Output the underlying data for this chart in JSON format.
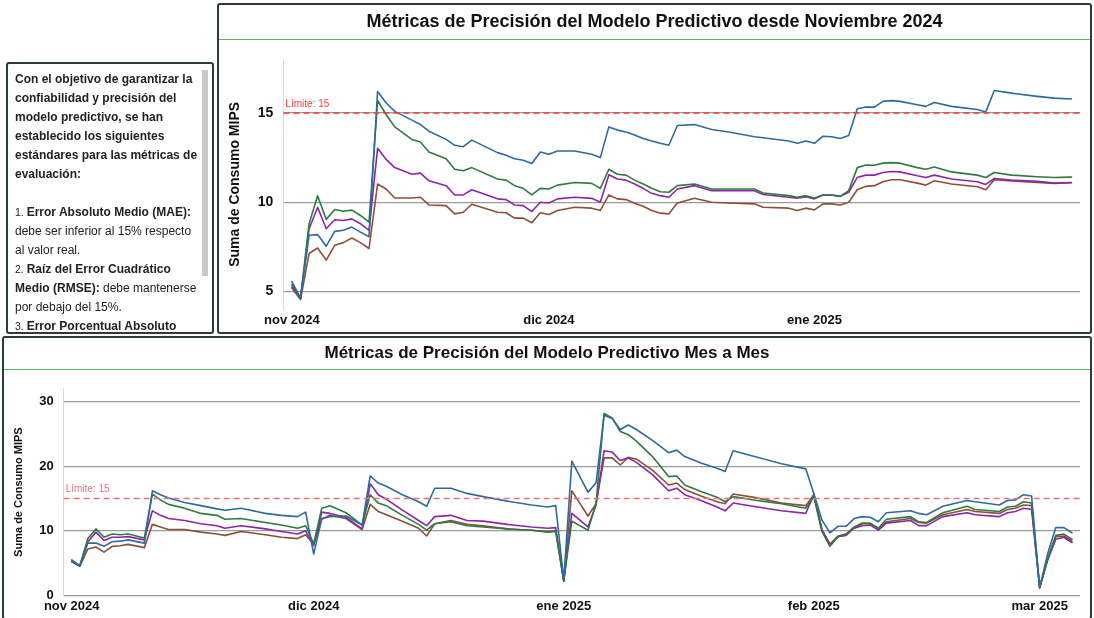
{
  "chart_data": [
    {
      "type": "other",
      "annotations": [
        "Con el objetivo de garantizar la confiabilidad y precisión del modelo predictivo, se han establecido los siguientes estándares para las métricas de evaluación:",
        "1. Error Absoluto Medio (MAE): debe ser inferior al 15% respecto al valor real.",
        "2. Raíz del Error Cuadrático Medio (RMSE): debe mantenerse por debajo del 15%.",
        "3. Error Porcentual Absoluto Medio (MAPE): debe ser menor"
      ]
    },
    {
      "type": "line",
      "title": "Métricas de Precisión del Modelo Predictivo desde Noviembre 2024",
      "ylabel": "Suma de Consumo MIPS",
      "x": [
        "2024-11-01",
        "2024-11-02",
        "2024-11-03",
        "2024-11-04",
        "2024-11-05",
        "2024-11-06",
        "2024-11-07",
        "2024-11-08",
        "2024-11-09",
        "2024-11-10",
        "2024-11-11",
        "2024-11-12",
        "2024-11-13",
        "2024-11-15",
        "2024-11-16",
        "2024-11-17",
        "2024-11-19",
        "2024-11-20",
        "2024-11-21",
        "2024-11-22",
        "2024-11-25",
        "2024-11-26",
        "2024-11-27",
        "2024-11-28",
        "2024-11-29",
        "2024-11-30",
        "2024-12-01",
        "2024-12-02",
        "2024-12-04",
        "2024-12-06",
        "2024-12-07",
        "2024-12-08",
        "2024-12-09",
        "2024-12-10",
        "2024-12-11",
        "2024-12-12",
        "2024-12-13",
        "2024-12-14",
        "2024-12-15",
        "2024-12-16",
        "2024-12-18",
        "2024-12-20",
        "2024-12-22",
        "2024-12-25",
        "2024-12-26",
        "2024-12-29",
        "2024-12-30",
        "2024-12-31",
        "2025-01-01",
        "2025-01-02",
        "2025-01-03",
        "2025-01-04",
        "2025-01-05",
        "2025-01-06",
        "2025-01-07",
        "2025-01-08",
        "2025-01-09",
        "2025-01-10",
        "2025-01-11",
        "2025-01-13",
        "2025-01-14",
        "2025-01-15",
        "2025-01-17",
        "2025-01-20",
        "2025-01-21",
        "2025-01-22",
        "2025-01-24",
        "2025-01-27",
        "2025-01-29",
        "2025-01-31"
      ],
      "series": [
        {
          "color": "#2f6a9e",
          "values": [
            5.56,
            4.63,
            8.15,
            8.19,
            7.54,
            8.37,
            8.43,
            8.61,
            8.33,
            8.06,
            16.2,
            15.56,
            15.09,
            14.6,
            14.35,
            13.98,
            13.52,
            13.19,
            13.11,
            13.48,
            12.78,
            12.63,
            12.44,
            12.35,
            12.17,
            12.81,
            12.69,
            12.87,
            12.87,
            12.69,
            12.5,
            14.22,
            14.04,
            13.93,
            13.76,
            13.57,
            13.43,
            13.3,
            13.19,
            14.3,
            14.35,
            14.07,
            13.93,
            13.67,
            13.61,
            13.43,
            13.3,
            13.43,
            13.3,
            13.7,
            13.67,
            13.57,
            13.74,
            15.24,
            15.33,
            15.33,
            15.65,
            15.69,
            15.65,
            15.46,
            15.37,
            15.59,
            15.37,
            15.19,
            15.06,
            16.26,
            16.11,
            15.93,
            15.83,
            15.78
          ]
        },
        {
          "color": "#2f7a3f",
          "values": [
            5.4,
            4.6,
            8.8,
            10.37,
            9.04,
            9.59,
            9.5,
            9.56,
            9.26,
            8.89,
            15.7,
            14.9,
            14.22,
            13.52,
            13.37,
            12.81,
            12.44,
            11.85,
            11.76,
            11.94,
            11.3,
            11.24,
            10.93,
            10.78,
            10.41,
            10.78,
            10.74,
            10.96,
            11.11,
            11.06,
            10.78,
            11.85,
            11.57,
            11.52,
            11.24,
            11.02,
            10.78,
            10.59,
            10.56,
            10.93,
            11.02,
            10.74,
            10.74,
            10.74,
            10.52,
            10.37,
            10.28,
            10.37,
            10.24,
            10.41,
            10.41,
            10.33,
            10.65,
            11.94,
            12.09,
            12.07,
            12.19,
            12.22,
            12.19,
            11.94,
            11.85,
            11.98,
            11.7,
            11.52,
            11.39,
            11.67,
            11.52,
            11.43,
            11.39,
            11.41
          ]
        },
        {
          "color": "#8e24aa",
          "values": [
            5.3,
            4.6,
            8.5,
            9.72,
            8.52,
            9.02,
            8.98,
            9.07,
            8.8,
            8.43,
            13.02,
            12.4,
            11.94,
            11.57,
            11.63,
            11.2,
            10.93,
            10.41,
            10.41,
            10.7,
            10.19,
            10.15,
            9.85,
            9.81,
            9.48,
            10.0,
            9.96,
            10.19,
            10.28,
            10.22,
            10.0,
            11.54,
            11.3,
            11.24,
            11.02,
            10.78,
            10.5,
            10.37,
            10.28,
            10.74,
            10.93,
            10.65,
            10.65,
            10.65,
            10.43,
            10.28,
            10.22,
            10.31,
            10.19,
            10.41,
            10.41,
            10.33,
            10.56,
            11.39,
            11.52,
            11.52,
            11.67,
            11.72,
            11.7,
            11.48,
            11.39,
            11.52,
            11.3,
            11.15,
            11.0,
            11.33,
            11.24,
            11.17,
            11.07,
            11.11
          ]
        },
        {
          "color": "#8d4f3a",
          "values": [
            5.2,
            4.55,
            7.13,
            7.44,
            6.76,
            7.59,
            7.74,
            8.0,
            7.74,
            7.41,
            11.02,
            10.74,
            10.24,
            10.24,
            10.28,
            9.85,
            9.81,
            9.35,
            9.44,
            9.89,
            9.44,
            9.41,
            9.11,
            9.11,
            8.85,
            9.41,
            9.31,
            9.54,
            9.72,
            9.67,
            9.54,
            10.41,
            10.19,
            10.15,
            9.94,
            9.78,
            9.54,
            9.39,
            9.35,
            9.96,
            10.22,
            10.0,
            9.96,
            9.91,
            9.72,
            9.67,
            9.54,
            9.67,
            9.57,
            9.91,
            9.91,
            9.85,
            10.0,
            10.7,
            10.89,
            10.93,
            11.15,
            11.26,
            11.26,
            11.07,
            10.96,
            11.2,
            11.02,
            10.87,
            10.7,
            11.26,
            11.2,
            11.11,
            11.06,
            11.09
          ]
        }
      ],
      "xlim": [
        "2024-10-31",
        "2025-02-01"
      ],
      "xticks": [
        {
          "value": "2024-11-01",
          "label": "nov 2024"
        },
        {
          "value": "2024-12-01",
          "label": "dic 2024"
        },
        {
          "value": "2025-01-01",
          "label": "ene 2025"
        }
      ],
      "ylim": [
        4,
        18
      ],
      "yticks": [
        5,
        10,
        15
      ],
      "grid": "y",
      "marker": "none",
      "line_style": "solid",
      "ref_lines": [
        {
          "axis": "y",
          "value": 15,
          "label": "Límite: 15",
          "color": "#ff3b3b",
          "line_style": "dashed"
        }
      ]
    },
    {
      "type": "line",
      "title": "Métricas de Precisión del Modelo Predictivo Mes a Mes",
      "ylabel": "Suma de Consumo MIPS",
      "x": [
        "2024-11-01",
        "2024-11-02",
        "2024-11-03",
        "2024-11-04",
        "2024-11-05",
        "2024-11-06",
        "2024-11-07",
        "2024-11-08",
        "2024-11-10",
        "2024-11-11",
        "2024-11-12",
        "2024-11-13",
        "2024-11-15",
        "2024-11-17",
        "2024-11-19",
        "2024-11-20",
        "2024-11-22",
        "2024-11-25",
        "2024-11-27",
        "2024-11-29",
        "2024-11-30",
        "2024-12-01",
        "2024-12-02",
        "2024-12-03",
        "2024-12-05",
        "2024-12-07",
        "2024-12-08",
        "2024-12-09",
        "2024-12-10",
        "2024-12-12",
        "2024-12-14",
        "2024-12-15",
        "2024-12-16",
        "2024-12-18",
        "2024-12-20",
        "2024-12-22",
        "2024-12-25",
        "2024-12-28",
        "2024-12-30",
        "2024-12-31",
        "2025-01-01",
        "2025-01-02",
        "2025-01-04",
        "2025-01-05",
        "2025-01-06",
        "2025-01-07",
        "2025-01-08",
        "2025-01-09",
        "2025-01-10",
        "2025-01-12",
        "2025-01-14",
        "2025-01-15",
        "2025-01-16",
        "2025-01-18",
        "2025-01-20",
        "2025-01-21",
        "2025-01-22",
        "2025-01-25",
        "2025-01-28",
        "2025-01-31",
        "2025-02-01",
        "2025-02-02",
        "2025-02-03",
        "2025-02-04",
        "2025-02-05",
        "2025-02-06",
        "2025-02-07",
        "2025-02-08",
        "2025-02-09",
        "2025-02-10",
        "2025-02-13",
        "2025-02-14",
        "2025-02-15",
        "2025-02-17",
        "2025-02-20",
        "2025-02-21",
        "2025-02-24",
        "2025-02-25",
        "2025-02-26",
        "2025-02-27",
        "2025-02-28",
        "2025-03-01",
        "2025-03-02",
        "2025-03-03",
        "2025-03-04",
        "2025-03-05"
      ],
      "series": [
        {
          "color": "#2f6a9e",
          "values": [
            5.5,
            4.6,
            8.1,
            8.1,
            7.6,
            8.3,
            8.4,
            8.6,
            8.1,
            16.2,
            15.6,
            15.1,
            14.4,
            13.9,
            13.4,
            13.2,
            13.5,
            12.7,
            12.4,
            12.2,
            12.9,
            6.4,
            11.9,
            12.2,
            12.3,
            10.9,
            18.5,
            17.4,
            16.9,
            15.6,
            14.5,
            13.8,
            16.6,
            16.6,
            15.8,
            15.3,
            14.6,
            14.0,
            13.7,
            13.9,
            2.4,
            20.8,
            16.0,
            17.4,
            27.9,
            27.4,
            25.7,
            26.4,
            25.7,
            24.0,
            22.1,
            22.5,
            21.5,
            20.5,
            19.7,
            19.2,
            22.4,
            21.4,
            20.4,
            19.6,
            15.8,
            11.7,
            9.7,
            10.7,
            10.7,
            11.9,
            12.2,
            12.1,
            11.4,
            12.8,
            13.1,
            12.7,
            12.5,
            13.8,
            14.7,
            14.5,
            14.0,
            14.7,
            14.8,
            15.6,
            15.4,
            1.2,
            6.5,
            10.5,
            10.5,
            9.7
          ]
        },
        {
          "color": "#2f7a3f",
          "values": [
            5.3,
            4.6,
            8.8,
            10.3,
            9.0,
            9.5,
            9.4,
            9.5,
            8.9,
            15.7,
            14.8,
            14.1,
            13.5,
            12.7,
            12.4,
            11.8,
            11.9,
            11.3,
            10.9,
            10.4,
            10.8,
            8.0,
            13.5,
            13.9,
            12.8,
            10.9,
            15.6,
            14.3,
            13.9,
            12.4,
            11.0,
            10.1,
            11.1,
            11.4,
            10.8,
            10.6,
            10.3,
            10.1,
            9.8,
            9.9,
            2.2,
            11.5,
            10.1,
            14.2,
            28.2,
            27.5,
            25.4,
            24.9,
            23.9,
            21.5,
            18.4,
            18.5,
            17.1,
            16.1,
            15.2,
            14.5,
            15.3,
            14.7,
            14.2,
            13.5,
            15.3,
            9.9,
            7.6,
            9.1,
            9.5,
            10.6,
            11.2,
            11.2,
            10.4,
            11.8,
            12.2,
            11.4,
            11.3,
            12.8,
            13.8,
            13.3,
            13.0,
            13.7,
            13.8,
            14.5,
            14.3,
            1.2,
            5.7,
            9.3,
            9.5,
            8.7
          ]
        },
        {
          "color": "#8e24aa",
          "values": [
            5.3,
            4.6,
            8.3,
            9.8,
            8.5,
            9.0,
            9.0,
            9.1,
            8.6,
            13.1,
            12.4,
            11.9,
            11.6,
            11.1,
            10.8,
            10.4,
            10.8,
            10.3,
            9.9,
            9.5,
            10.0,
            7.7,
            12.9,
            12.7,
            12.1,
            10.3,
            17.3,
            15.6,
            14.9,
            13.2,
            11.6,
            10.8,
            12.2,
            12.4,
            11.6,
            11.5,
            11.0,
            10.6,
            10.4,
            10.5,
            2.2,
            12.7,
            10.6,
            14.0,
            22.4,
            22.2,
            20.9,
            21.3,
            20.6,
            18.7,
            16.2,
            16.6,
            15.6,
            14.7,
            13.7,
            13.1,
            14.3,
            13.7,
            13.1,
            12.7,
            15.6,
            10.2,
            7.9,
            9.1,
            9.3,
            10.4,
            10.8,
            10.9,
            10.1,
            11.2,
            11.6,
            10.8,
            10.8,
            12.2,
            12.8,
            12.5,
            12.2,
            12.8,
            13.0,
            13.5,
            13.3,
            1.2,
            5.5,
            8.7,
            9.0,
            8.2
          ]
        },
        {
          "color": "#8d4f3a",
          "values": [
            5.2,
            4.5,
            7.2,
            7.5,
            6.7,
            7.6,
            7.7,
            7.9,
            7.4,
            11.0,
            10.6,
            10.2,
            10.2,
            9.8,
            9.5,
            9.3,
            9.9,
            9.4,
            9.0,
            8.8,
            9.4,
            7.9,
            11.8,
            12.4,
            11.9,
            10.2,
            14.1,
            13.0,
            12.5,
            11.5,
            10.4,
            9.2,
            11.1,
            11.6,
            11.0,
            10.8,
            10.3,
            10.1,
            9.9,
            10.0,
            2.2,
            16.2,
            12.3,
            14.2,
            21.3,
            21.3,
            20.2,
            21.4,
            21.1,
            19.4,
            17.1,
            17.4,
            16.4,
            15.4,
            14.5,
            14.2,
            15.7,
            15.1,
            14.3,
            13.9,
            15.6,
            10.2,
            7.9,
            9.2,
            9.5,
            10.5,
            11.1,
            11.1,
            10.4,
            11.4,
            11.9,
            11.3,
            11.2,
            12.5,
            13.3,
            13.0,
            12.7,
            13.3,
            13.5,
            14.0,
            13.9,
            1.2,
            5.6,
            9.1,
            9.2,
            8.4
          ]
        }
      ],
      "xlim": [
        "2024-10-31",
        "2025-03-06"
      ],
      "xticks": [
        {
          "value": "2024-11-01",
          "label": "nov 2024"
        },
        {
          "value": "2024-12-01",
          "label": "dic 2024"
        },
        {
          "value": "2025-01-01",
          "label": "ene 2025"
        },
        {
          "value": "2025-02-01",
          "label": "feb 2025"
        },
        {
          "value": "2025-03-01",
          "label": "mar 2025"
        }
      ],
      "ylim": [
        0,
        32
      ],
      "yticks": [
        0,
        10,
        20,
        30
      ],
      "grid": "y",
      "marker": "none",
      "line_style": "solid",
      "ref_lines": [
        {
          "axis": "y",
          "value": 15,
          "label": "Límite: 15",
          "color": "#e87478",
          "line_style": "dashed"
        }
      ]
    }
  ]
}
